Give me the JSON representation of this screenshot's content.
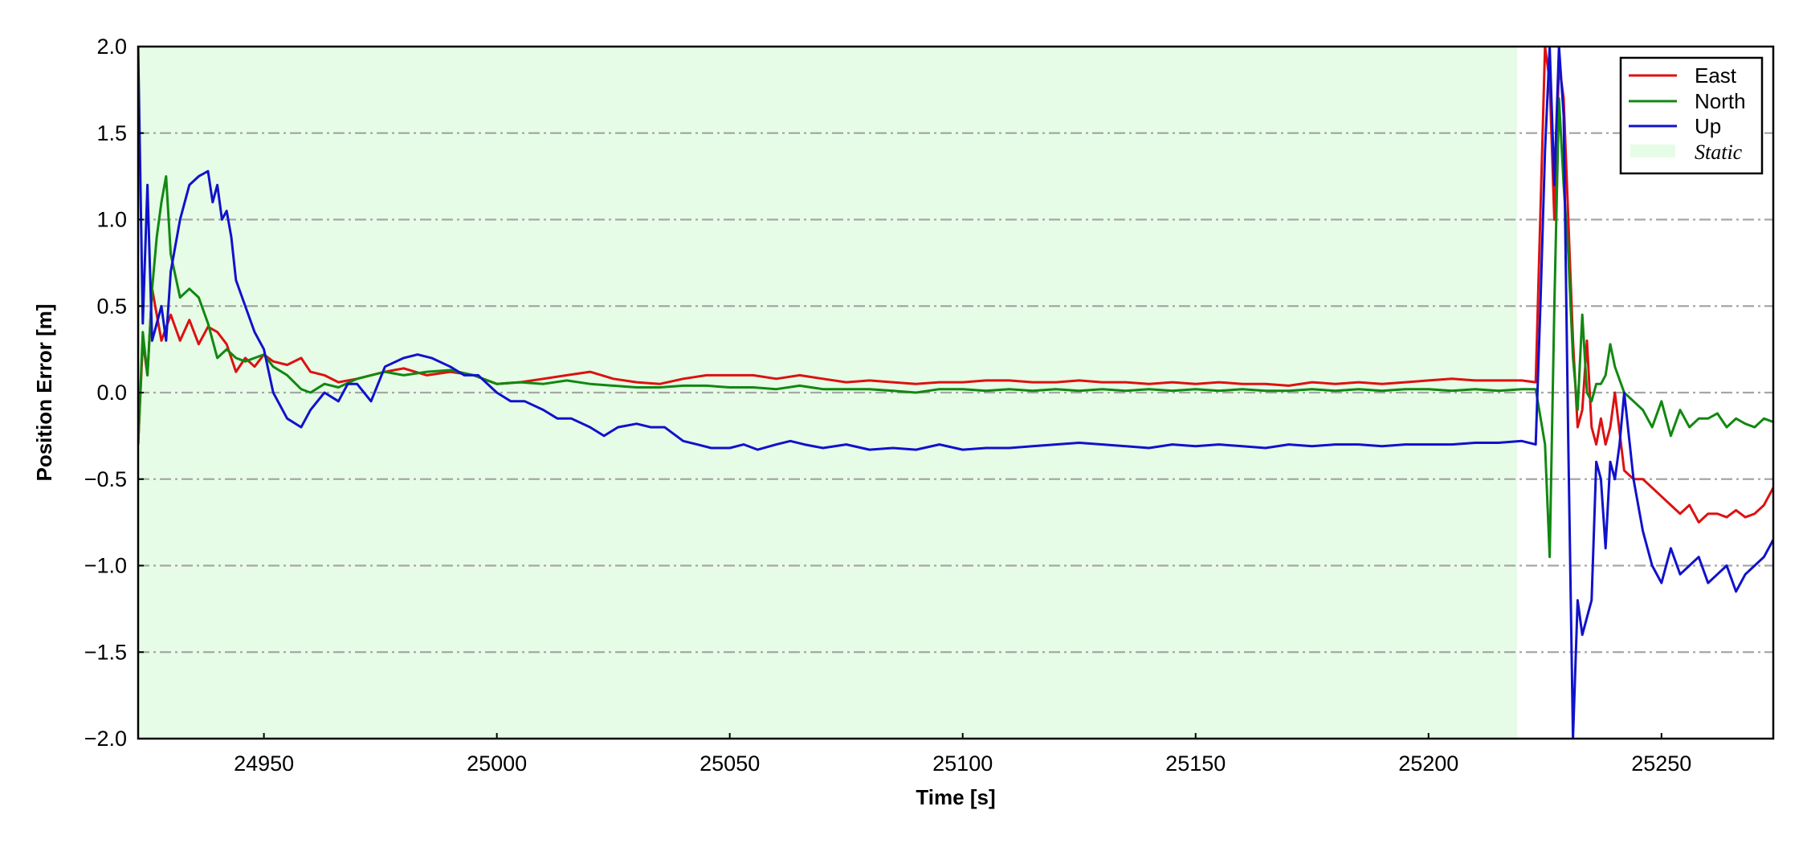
{
  "chart_data": {
    "type": "line",
    "title": "",
    "xlabel": "Time [s]",
    "ylabel": "Position Error [m]",
    "xlim": [
      24923,
      25274
    ],
    "ylim": [
      -2.0,
      2.0
    ],
    "xticks": [
      24950,
      25000,
      25050,
      25100,
      25150,
      25200,
      25250
    ],
    "xtick_labels": [
      "24950",
      "25000",
      "25050",
      "25100",
      "25150",
      "25200",
      "25250"
    ],
    "yticks": [
      -2.0,
      -1.5,
      -1.0,
      -0.5,
      0.0,
      0.5,
      1.0,
      1.5,
      2.0
    ],
    "ytick_labels": [
      "−2.0",
      "−1.5",
      "−1.0",
      "−0.5",
      "0.0",
      "0.5",
      "1.0",
      "1.5",
      "2.0"
    ],
    "grid": "horizontal dash-dot",
    "legend_position": "top-right",
    "static_region": {
      "label": "Static",
      "x_start": 24923,
      "x_end": 25219,
      "color": "#e6fce6"
    },
    "series": [
      {
        "name": "East",
        "color": "#dd1111",
        "x": [
          24923,
          24924,
          24925,
          24926,
          24927,
          24928,
          24930,
          24932,
          24934,
          24936,
          24938,
          24940,
          24942,
          24944,
          24946,
          24948,
          24950,
          24952,
          24955,
          24958,
          24960,
          24963,
          24966,
          24970,
          24973,
          24976,
          24980,
          24985,
          24990,
          24995,
          25000,
          25005,
          25010,
          25015,
          25020,
          25025,
          25030,
          25035,
          25040,
          25045,
          25050,
          25055,
          25060,
          25065,
          25070,
          25075,
          25080,
          25085,
          25090,
          25095,
          25100,
          25105,
          25110,
          25115,
          25120,
          25125,
          25130,
          25135,
          25140,
          25145,
          25150,
          25155,
          25160,
          25165,
          25170,
          25175,
          25180,
          25185,
          25190,
          25195,
          25200,
          25205,
          25210,
          25215,
          25220,
          25223,
          25225,
          25226,
          25227,
          25228,
          25229,
          25230,
          25231,
          25232,
          25233,
          25234,
          25235,
          25236,
          25237,
          25238,
          25239,
          25240,
          25242,
          25244,
          25246,
          25248,
          25250,
          25252,
          25254,
          25256,
          25258,
          25260,
          25262,
          25264,
          25266,
          25268,
          25270,
          25272,
          25274
        ],
        "values": [
          -0.3,
          0.3,
          0.1,
          0.6,
          0.45,
          0.3,
          0.45,
          0.3,
          0.42,
          0.28,
          0.38,
          0.35,
          0.28,
          0.12,
          0.2,
          0.15,
          0.22,
          0.18,
          0.16,
          0.2,
          0.12,
          0.1,
          0.06,
          0.08,
          0.1,
          0.12,
          0.14,
          0.1,
          0.12,
          0.1,
          0.05,
          0.06,
          0.08,
          0.1,
          0.12,
          0.08,
          0.06,
          0.05,
          0.08,
          0.1,
          0.1,
          0.1,
          0.08,
          0.1,
          0.08,
          0.06,
          0.07,
          0.06,
          0.05,
          0.06,
          0.06,
          0.07,
          0.07,
          0.06,
          0.06,
          0.07,
          0.06,
          0.06,
          0.05,
          0.06,
          0.05,
          0.06,
          0.05,
          0.05,
          0.04,
          0.06,
          0.05,
          0.06,
          0.05,
          0.06,
          0.07,
          0.08,
          0.07,
          0.07,
          0.07,
          0.06,
          2.0,
          1.8,
          1.0,
          1.9,
          1.7,
          1.0,
          0.3,
          -0.2,
          -0.1,
          0.3,
          -0.2,
          -0.3,
          -0.15,
          -0.3,
          -0.2,
          0.0,
          -0.45,
          -0.5,
          -0.5,
          -0.55,
          -0.6,
          -0.65,
          -0.7,
          -0.65,
          -0.75,
          -0.7,
          -0.7,
          -0.72,
          -0.68,
          -0.72,
          -0.7,
          -0.65,
          -0.55
        ]
      },
      {
        "name": "North",
        "color": "#118811",
        "x": [
          24923,
          24924,
          24925,
          24926,
          24927,
          24928,
          24929,
          24930,
          24932,
          24934,
          24936,
          24938,
          24940,
          24942,
          24944,
          24946,
          24948,
          24950,
          24952,
          24955,
          24958,
          24960,
          24963,
          24966,
          24970,
          24973,
          24976,
          24980,
          24985,
          24990,
          24995,
          25000,
          25005,
          25010,
          25015,
          25020,
          25025,
          25030,
          25035,
          25040,
          25045,
          25050,
          25055,
          25060,
          25065,
          25070,
          25075,
          25080,
          25085,
          25090,
          25095,
          25100,
          25105,
          25110,
          25115,
          25120,
          25125,
          25130,
          25135,
          25140,
          25145,
          25150,
          25155,
          25160,
          25165,
          25170,
          25175,
          25180,
          25185,
          25190,
          25195,
          25200,
          25205,
          25210,
          25215,
          25220,
          25223,
          25225,
          25226,
          25227,
          25228,
          25229,
          25230,
          25231,
          25232,
          25233,
          25234,
          25235,
          25236,
          25237,
          25238,
          25239,
          25240,
          25242,
          25244,
          25246,
          25248,
          25250,
          25252,
          25254,
          25256,
          25258,
          25260,
          25262,
          25264,
          25266,
          25268,
          25270,
          25272,
          25274
        ],
        "values": [
          -0.3,
          0.35,
          0.1,
          0.6,
          0.9,
          1.1,
          1.25,
          0.8,
          0.55,
          0.6,
          0.55,
          0.4,
          0.2,
          0.25,
          0.2,
          0.18,
          0.2,
          0.22,
          0.15,
          0.1,
          0.02,
          0.0,
          0.05,
          0.03,
          0.08,
          0.1,
          0.12,
          0.1,
          0.12,
          0.13,
          0.1,
          0.05,
          0.06,
          0.05,
          0.07,
          0.05,
          0.04,
          0.03,
          0.03,
          0.04,
          0.04,
          0.03,
          0.03,
          0.02,
          0.04,
          0.02,
          0.02,
          0.02,
          0.01,
          0.0,
          0.02,
          0.02,
          0.01,
          0.02,
          0.01,
          0.02,
          0.01,
          0.02,
          0.01,
          0.02,
          0.01,
          0.02,
          0.01,
          0.02,
          0.01,
          0.01,
          0.02,
          0.01,
          0.02,
          0.01,
          0.02,
          0.02,
          0.01,
          0.02,
          0.01,
          0.02,
          0.02,
          -0.3,
          -0.95,
          0.5,
          1.7,
          1.2,
          0.8,
          0.2,
          -0.1,
          0.45,
          0.0,
          -0.05,
          0.05,
          0.05,
          0.1,
          0.28,
          0.15,
          0.0,
          -0.05,
          -0.1,
          -0.2,
          -0.05,
          -0.25,
          -0.1,
          -0.2,
          -0.15,
          -0.15,
          -0.12,
          -0.2,
          -0.15,
          -0.18,
          -0.2,
          -0.15,
          -0.17
        ]
      },
      {
        "name": "Up",
        "color": "#1111cc",
        "x": [
          24923,
          24924,
          24925,
          24926,
          24927,
          24928,
          24929,
          24930,
          24932,
          24934,
          24936,
          24938,
          24939,
          24940,
          24941,
          24942,
          24943,
          24944,
          24946,
          24948,
          24950,
          24952,
          24955,
          24958,
          24960,
          24963,
          24966,
          24968,
          24970,
          24973,
          24976,
          24980,
          24983,
          24986,
          24990,
          24993,
          24996,
          25000,
          25003,
          25006,
          25010,
          25013,
          25016,
          25020,
          25023,
          25026,
          25030,
          25033,
          25036,
          25040,
          25043,
          25046,
          25050,
          25053,
          25056,
          25060,
          25063,
          25066,
          25070,
          25075,
          25080,
          25085,
          25090,
          25095,
          25100,
          25105,
          25110,
          25115,
          25120,
          25125,
          25130,
          25135,
          25140,
          25145,
          25150,
          25155,
          25160,
          25165,
          25170,
          25175,
          25180,
          25185,
          25190,
          25195,
          25200,
          25205,
          25210,
          25215,
          25220,
          25223,
          25224,
          25225,
          25226,
          25227,
          25228,
          25229,
          25230,
          25231,
          25232,
          25233,
          25234,
          25235,
          25236,
          25237,
          25238,
          25239,
          25240,
          25241,
          25242,
          25244,
          25246,
          25248,
          25250,
          25252,
          25254,
          25256,
          25258,
          25260,
          25262,
          25264,
          25266,
          25268,
          25270,
          25272,
          25274
        ],
        "values": [
          2.0,
          0.4,
          1.2,
          0.3,
          0.4,
          0.5,
          0.3,
          0.7,
          1.0,
          1.2,
          1.25,
          1.28,
          1.1,
          1.2,
          1.0,
          1.05,
          0.9,
          0.65,
          0.5,
          0.35,
          0.25,
          0.0,
          -0.15,
          -0.2,
          -0.1,
          0.0,
          -0.05,
          0.05,
          0.05,
          -0.05,
          0.15,
          0.2,
          0.22,
          0.2,
          0.15,
          0.1,
          0.1,
          0.0,
          -0.05,
          -0.05,
          -0.1,
          -0.15,
          -0.15,
          -0.2,
          -0.25,
          -0.2,
          -0.18,
          -0.2,
          -0.2,
          -0.28,
          -0.3,
          -0.32,
          -0.32,
          -0.3,
          -0.33,
          -0.3,
          -0.28,
          -0.3,
          -0.32,
          -0.3,
          -0.33,
          -0.32,
          -0.33,
          -0.3,
          -0.33,
          -0.32,
          -0.32,
          -0.31,
          -0.3,
          -0.29,
          -0.3,
          -0.31,
          -0.32,
          -0.3,
          -0.31,
          -0.3,
          -0.31,
          -0.32,
          -0.3,
          -0.31,
          -0.3,
          -0.3,
          -0.31,
          -0.3,
          -0.3,
          -0.3,
          -0.29,
          -0.29,
          -0.28,
          -0.3,
          0.5,
          1.4,
          2.0,
          1.2,
          2.0,
          1.6,
          -0.3,
          -2.0,
          -1.2,
          -1.4,
          -1.3,
          -1.2,
          -0.4,
          -0.5,
          -0.9,
          -0.4,
          -0.5,
          -0.3,
          0.0,
          -0.5,
          -0.8,
          -1.0,
          -1.1,
          -0.9,
          -1.05,
          -1.0,
          -0.95,
          -1.1,
          -1.05,
          -1.0,
          -1.15,
          -1.05,
          -1.0,
          -0.95,
          -0.85
        ]
      }
    ]
  }
}
